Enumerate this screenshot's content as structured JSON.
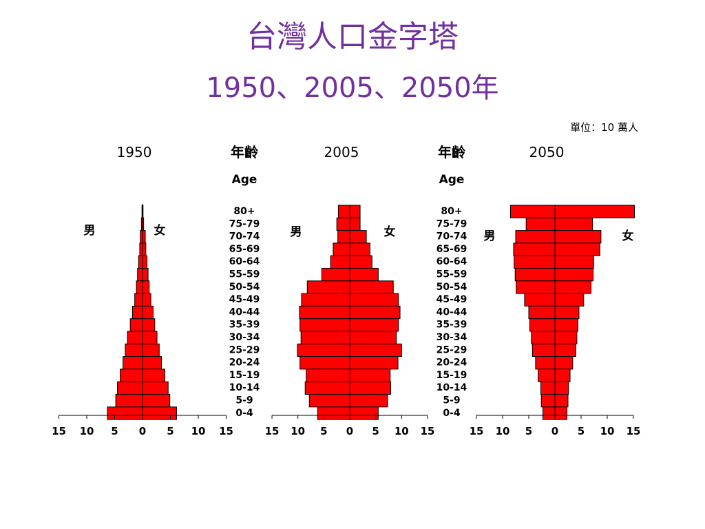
{
  "slide": {
    "title": "台灣人口金字塔",
    "subtitle": "1950、2005、2050年"
  },
  "unit_note": "單位：10 萬人",
  "age_header_zh": "年齡",
  "age_header_en": "Age",
  "male_label": "男",
  "female_label": "女",
  "colors": {
    "bar": "#ff0000",
    "bar_stroke": "#000000",
    "title": "#7030A0"
  },
  "chart_data": [
    {
      "type": "bar",
      "title": "1950",
      "orientation": "horizontal",
      "categories": [
        "80+",
        "75-79",
        "70-74",
        "65-69",
        "60-64",
        "55-59",
        "50-54",
        "45-49",
        "40-44",
        "35-39",
        "30-34",
        "25-29",
        "20-24",
        "15-19",
        "10-14",
        "5-9",
        "0-4"
      ],
      "series": [
        {
          "name": "男",
          "values": [
            0.1,
            0.2,
            0.4,
            0.5,
            0.7,
            0.9,
            1.1,
            1.4,
            1.8,
            2.2,
            2.7,
            3.1,
            3.5,
            4.0,
            4.5,
            4.8,
            6.3
          ]
        },
        {
          "name": "女",
          "values": [
            0.1,
            0.2,
            0.5,
            0.6,
            0.8,
            1.0,
            1.2,
            1.5,
            1.9,
            2.2,
            2.6,
            3.0,
            3.4,
            4.0,
            4.6,
            4.9,
            6.1
          ]
        }
      ],
      "xlim": [
        -15,
        15
      ],
      "xticks": [
        "15",
        "10",
        "5",
        "0",
        "5",
        "10",
        "15"
      ]
    },
    {
      "type": "bar",
      "title": "2005",
      "orientation": "horizontal",
      "categories": [
        "80+",
        "75-79",
        "70-74",
        "65-69",
        "60-64",
        "55-59",
        "50-54",
        "45-49",
        "40-44",
        "35-39",
        "30-34",
        "25-29",
        "20-24",
        "15-19",
        "10-14",
        "5-9",
        "0-4"
      ],
      "series": [
        {
          "name": "男",
          "values": [
            2.2,
            2.5,
            2.3,
            3.2,
            3.7,
            5.4,
            8.2,
            9.3,
            9.7,
            9.6,
            9.4,
            10.1,
            9.6,
            8.4,
            8.6,
            7.8,
            6.2
          ]
        },
        {
          "name": "女",
          "values": [
            2.0,
            2.0,
            3.2,
            3.9,
            4.3,
            5.5,
            8.4,
            9.4,
            9.7,
            9.4,
            9.0,
            10.0,
            9.3,
            7.8,
            7.9,
            7.3,
            5.5
          ]
        }
      ],
      "xlim": [
        -15,
        15
      ],
      "xticks": [
        "15",
        "10",
        "5",
        "0",
        "5",
        "10",
        "15"
      ]
    },
    {
      "type": "bar",
      "title": "2050",
      "orientation": "horizontal",
      "categories": [
        "80+",
        "75-79",
        "70-74",
        "65-69",
        "60-64",
        "55-59",
        "50-54",
        "45-49",
        "40-44",
        "35-39",
        "30-34",
        "25-29",
        "20-24",
        "15-19",
        "10-14",
        "5-9",
        "0-4"
      ],
      "series": [
        {
          "name": "男",
          "values": [
            8.5,
            5.5,
            7.5,
            7.9,
            7.8,
            7.6,
            7.4,
            5.8,
            5.0,
            4.8,
            4.5,
            4.3,
            3.7,
            3.2,
            2.7,
            2.6,
            2.3
          ]
        },
        {
          "name": "女",
          "values": [
            15.2,
            7.2,
            8.8,
            8.6,
            7.4,
            7.3,
            6.9,
            5.5,
            4.6,
            4.4,
            4.2,
            4.0,
            3.4,
            2.9,
            2.6,
            2.5,
            2.3
          ]
        }
      ],
      "xlim": [
        -15,
        15
      ],
      "xticks": [
        "15",
        "10",
        "5",
        "0",
        "5",
        "10",
        "15"
      ]
    }
  ]
}
